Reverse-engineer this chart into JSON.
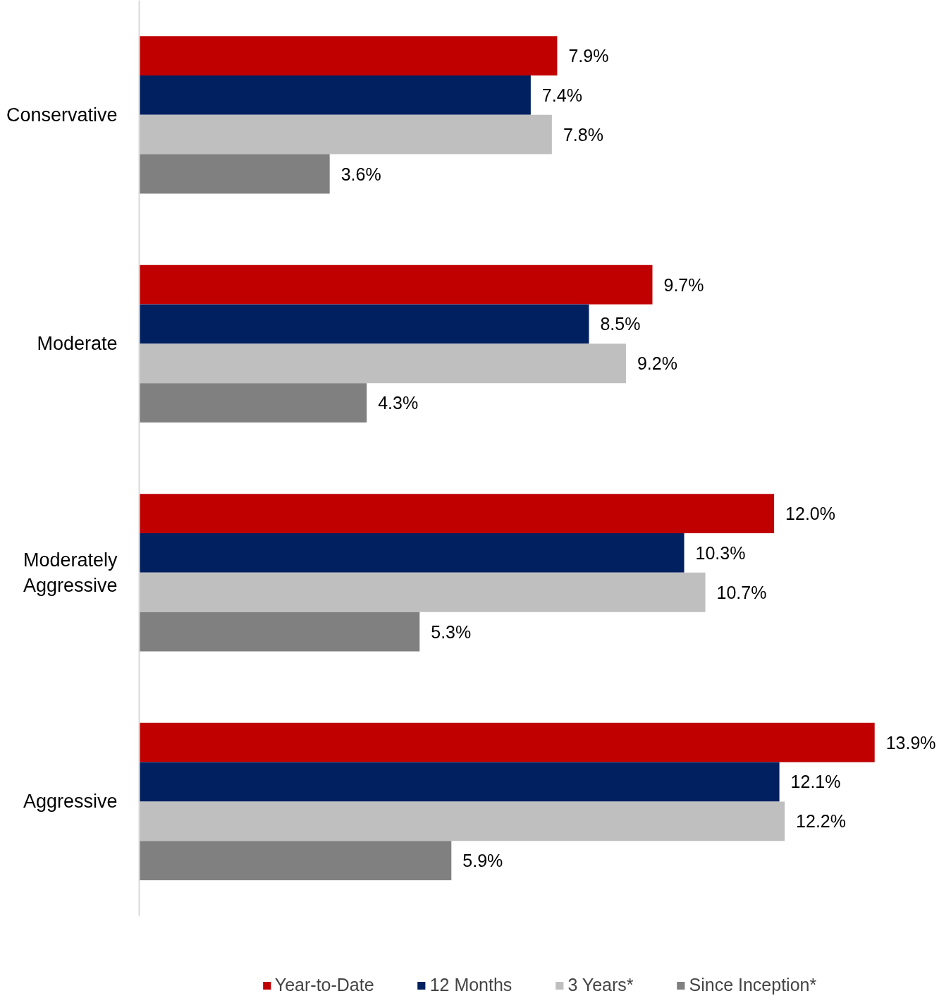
{
  "chart_data": {
    "type": "bar",
    "orientation": "horizontal",
    "categories": [
      "Conservative",
      "Moderate",
      "Moderately Aggressive",
      "Aggressive"
    ],
    "series": [
      {
        "name": "Year-to-Date",
        "color": "#c00000",
        "values": [
          7.9,
          9.7,
          12.0,
          13.9
        ],
        "value_labels": [
          "7.9%",
          "9.7%",
          "12.0%",
          "13.9%"
        ]
      },
      {
        "name": "12 Months",
        "color": "#002060",
        "values": [
          7.4,
          8.5,
          10.3,
          12.1
        ],
        "value_labels": [
          "7.4%",
          "8.5%",
          "10.3%",
          "12.1%"
        ]
      },
      {
        "name": "3 Years*",
        "color": "#bfbfbf",
        "values": [
          7.8,
          9.2,
          10.7,
          12.2
        ],
        "value_labels": [
          "7.8%",
          "9.2%",
          "10.7%",
          "12.2%"
        ]
      },
      {
        "name": "Since Inception*",
        "color": "#808080",
        "values": [
          3.6,
          4.3,
          5.3,
          5.9
        ],
        "value_labels": [
          "3.6%",
          "4.3%",
          "5.3%",
          "5.9%"
        ]
      }
    ],
    "legend": "bottom",
    "grid": false
  }
}
